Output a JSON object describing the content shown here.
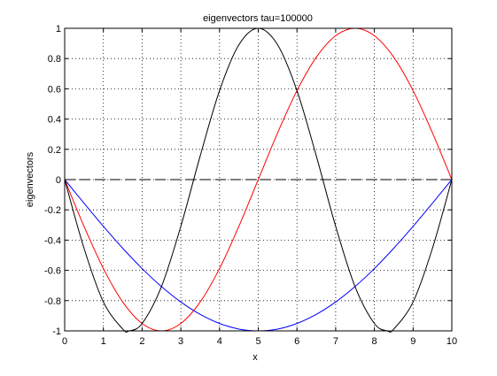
{
  "chart_data": {
    "type": "line",
    "title": "eigenvectors tau=100000",
    "xlabel": "x",
    "ylabel": "eigenvectors",
    "xlim": [
      0,
      10
    ],
    "ylim": [
      -1,
      1
    ],
    "grid": true,
    "x_ticks": [
      0,
      1,
      2,
      3,
      4,
      5,
      6,
      7,
      8,
      9,
      10
    ],
    "x_tick_labels": [
      "0",
      "1",
      "2",
      "3",
      "4",
      "5",
      "6",
      "7",
      "8",
      "9",
      "10"
    ],
    "y_ticks": [
      -1,
      -0.8,
      -0.6,
      -0.4,
      -0.2,
      0,
      0.2,
      0.4,
      0.6,
      0.8,
      1
    ],
    "y_tick_labels": [
      "-1",
      "-0.8",
      "-0.6",
      "-0.4",
      "-0.2",
      "0",
      "0.2",
      "0.4",
      "0.6",
      "0.8",
      "1"
    ],
    "series": [
      {
        "color": "#0000ff",
        "style": "solid",
        "x": [
          0,
          0.5,
          1,
          1.5,
          2,
          2.5,
          3,
          3.5,
          4,
          4.5,
          5,
          5.5,
          6,
          6.5,
          7,
          7.5,
          8,
          8.5,
          9,
          9.5,
          10
        ],
        "y": [
          0,
          -0.156,
          -0.309,
          -0.454,
          -0.588,
          -0.707,
          -0.809,
          -0.891,
          -0.951,
          -0.988,
          -1,
          -0.988,
          -0.951,
          -0.891,
          -0.809,
          -0.707,
          -0.588,
          -0.454,
          -0.309,
          -0.156,
          0
        ]
      },
      {
        "color": "#ff0000",
        "style": "solid",
        "x": [
          0,
          0.5,
          1,
          1.5,
          2,
          2.5,
          3,
          3.5,
          4,
          4.5,
          5,
          5.5,
          6,
          6.5,
          7,
          7.5,
          8,
          8.5,
          9,
          9.5,
          10
        ],
        "y": [
          0,
          -0.309,
          -0.588,
          -0.809,
          -0.951,
          -1,
          -0.951,
          -0.809,
          -0.588,
          -0.309,
          0,
          0.309,
          0.588,
          0.809,
          0.951,
          1,
          0.951,
          0.809,
          0.588,
          0.309,
          0
        ]
      },
      {
        "color": "#000000",
        "style": "solid",
        "x": [
          0,
          0.5,
          1,
          1.5,
          1.667,
          2,
          2.5,
          3,
          3.5,
          4,
          4.5,
          5,
          5.5,
          6,
          6.5,
          7,
          7.5,
          8,
          8.333,
          8.5,
          9,
          9.5,
          10
        ],
        "y": [
          0,
          -0.454,
          -0.809,
          -0.988,
          -1,
          -0.951,
          -0.707,
          -0.309,
          0.156,
          0.588,
          0.891,
          1,
          0.891,
          0.588,
          0.156,
          -0.309,
          -0.707,
          -0.951,
          -1,
          -0.988,
          -0.809,
          -0.454,
          0
        ]
      },
      {
        "color": "#000000",
        "style": "dashed",
        "x": [
          0,
          10
        ],
        "y": [
          0,
          0
        ]
      }
    ]
  }
}
